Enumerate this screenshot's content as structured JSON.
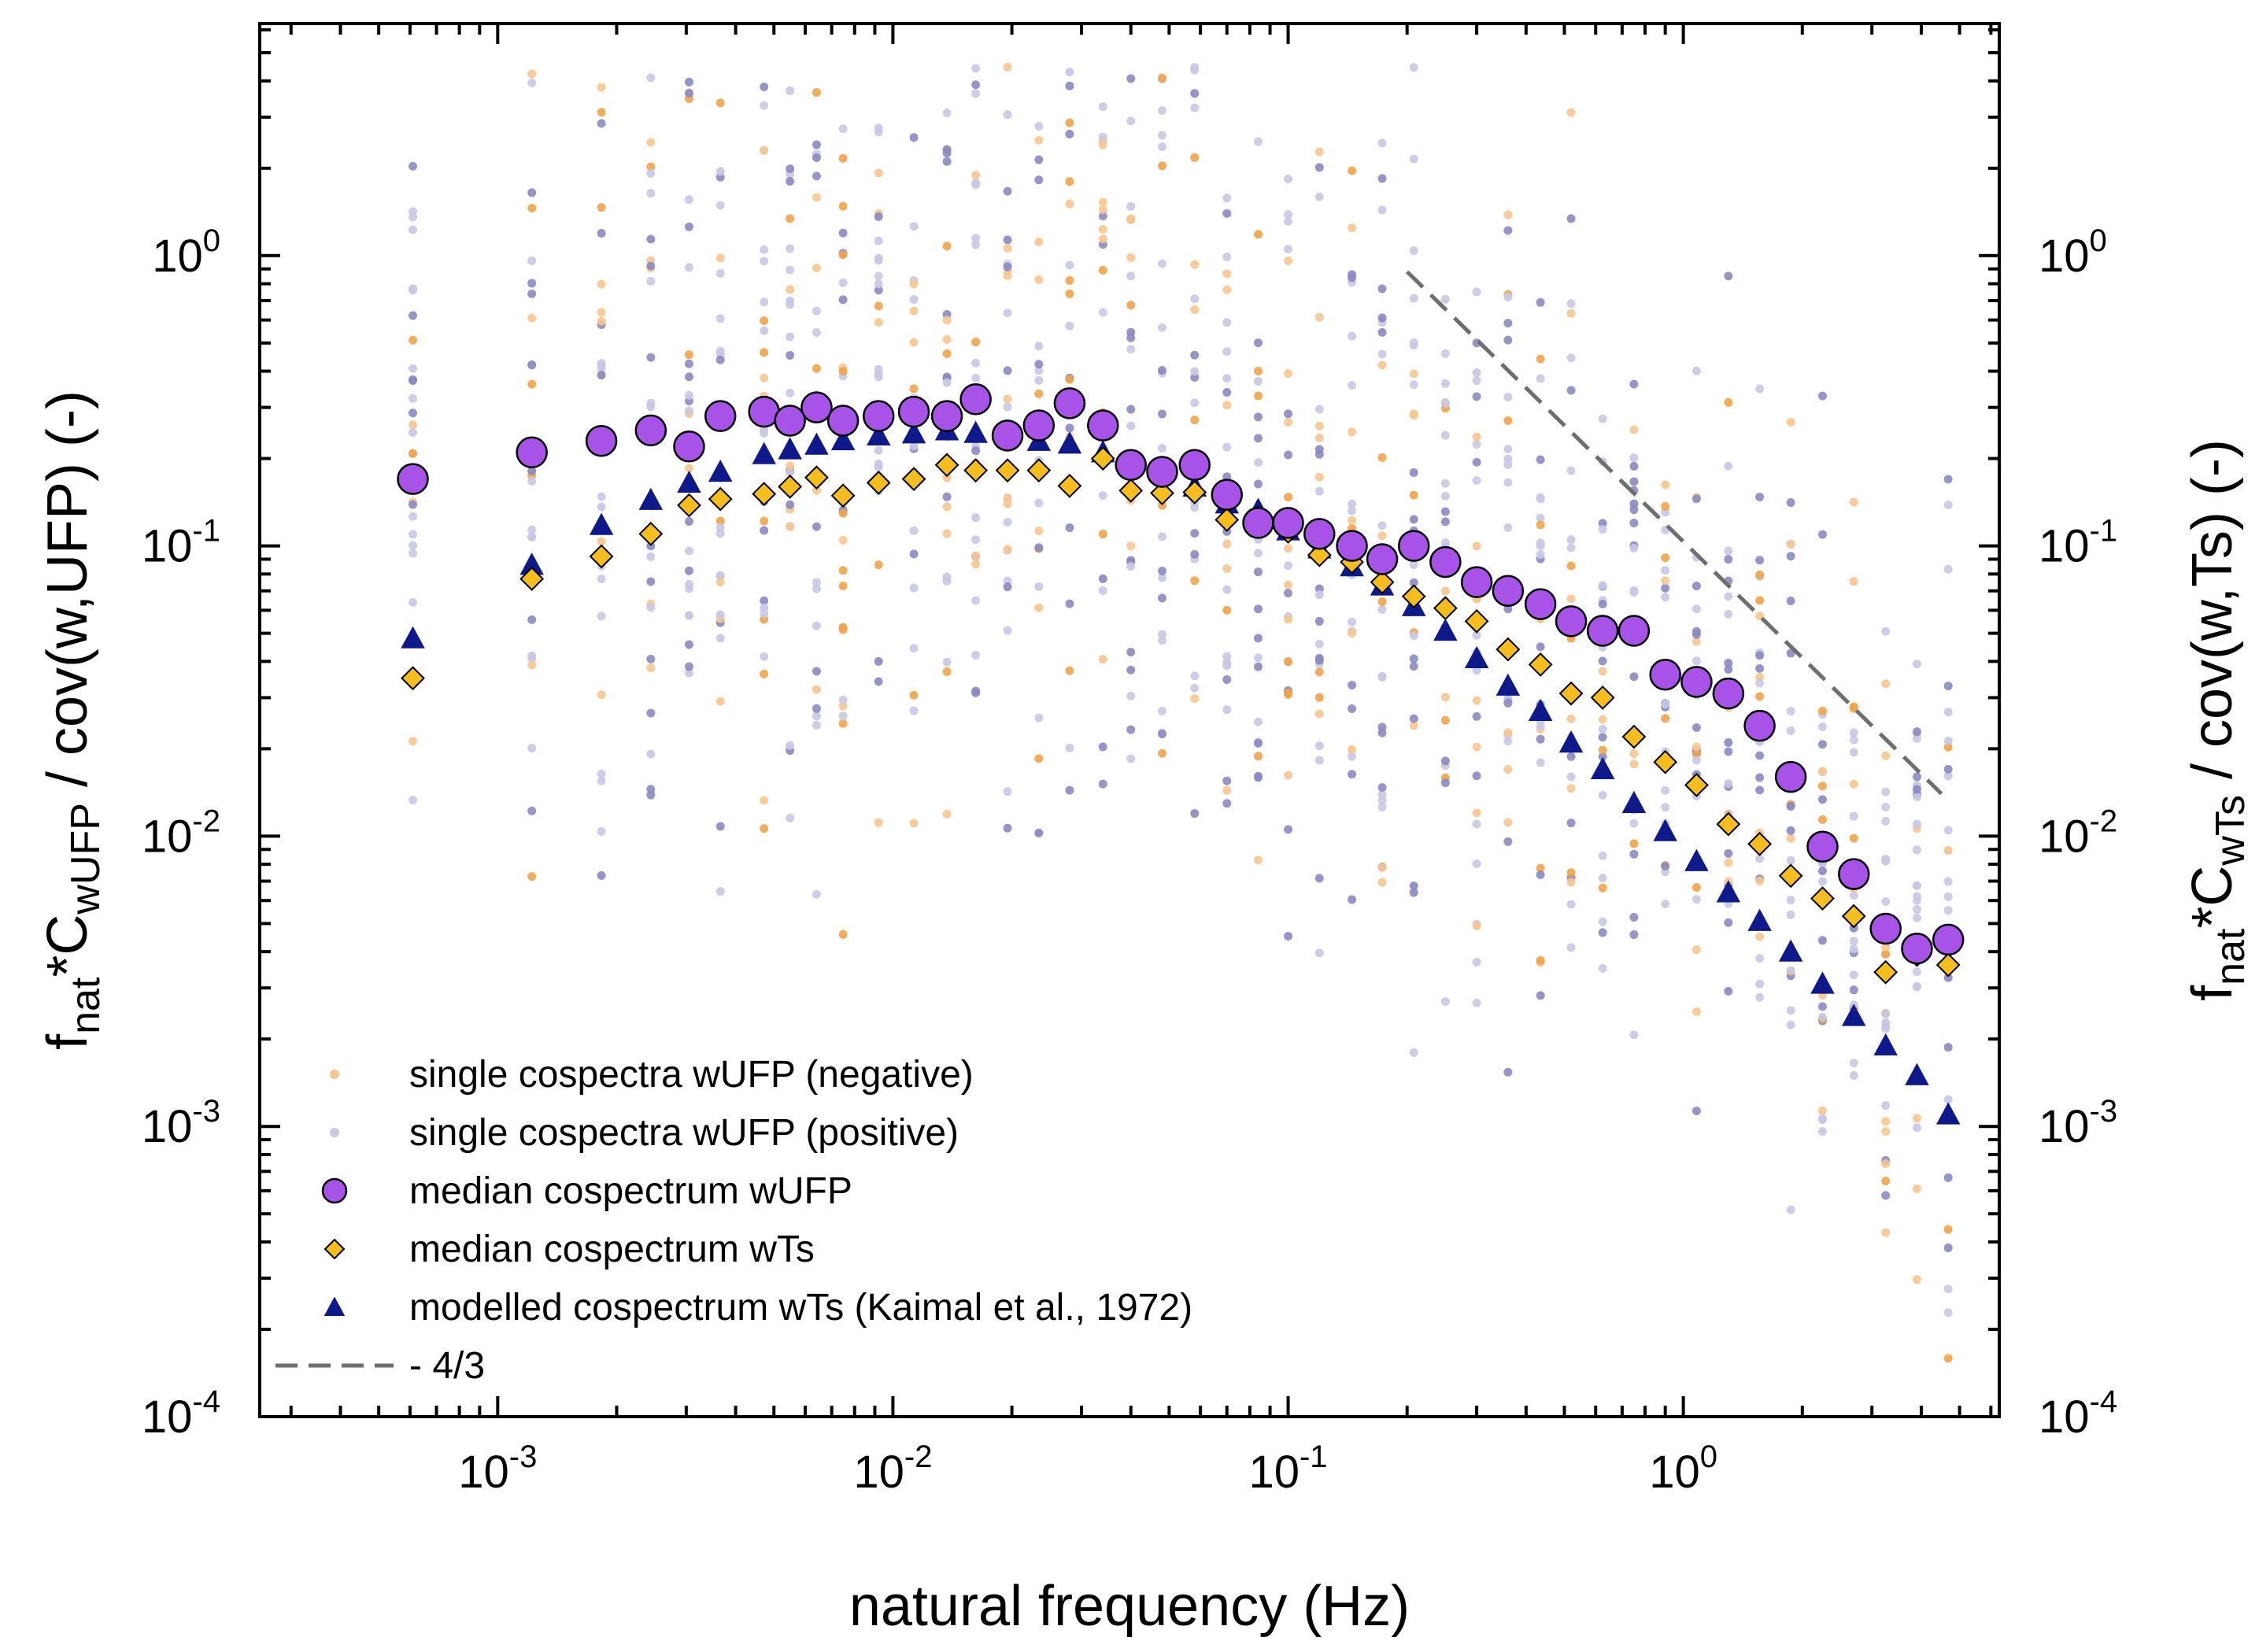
{
  "chart_data": {
    "type": "scatter",
    "title": "",
    "xlabel": "natural frequency (Hz)",
    "ylabel_left": "f_nat*C_wUFP / cov(w,UFP) (-)",
    "ylabel_left_parts": {
      "f": "f",
      "f_sub": "nat",
      "mid": "*C",
      "c_sub": "wUFP",
      "tail": " / cov(w,UFP) (-)"
    },
    "ylabel_right": "f_nat*C_wTs / cov(w,Ts) (-)",
    "ylabel_right_parts": {
      "f": "f",
      "f_sub": "nat",
      "mid": "*C",
      "c_sub": "wTs",
      "tail": " / cov(w,Ts) (-)"
    },
    "x_scale": "log",
    "y_scale": "log",
    "xlim": [
      0.00025,
      6.3
    ],
    "ylim": [
      0.0001,
      6.3
    ],
    "x_ticks": [
      {
        "value": 0.001,
        "base": "10",
        "exp": "-3"
      },
      {
        "value": 0.01,
        "base": "10",
        "exp": "-2"
      },
      {
        "value": 0.1,
        "base": "10",
        "exp": "-1"
      },
      {
        "value": 1,
        "base": "10",
        "exp": "0"
      }
    ],
    "y_ticks": [
      {
        "value": 0.0001,
        "base": "10",
        "exp": "-4"
      },
      {
        "value": 0.001,
        "base": "10",
        "exp": "-3"
      },
      {
        "value": 0.01,
        "base": "10",
        "exp": "-2"
      },
      {
        "value": 0.1,
        "base": "10",
        "exp": "-1"
      },
      {
        "value": 1,
        "base": "10",
        "exp": "0"
      }
    ],
    "x": [
      0.00061,
      0.00122,
      0.00183,
      0.00244,
      0.00305,
      0.00366,
      0.00472,
      0.00549,
      0.00641,
      0.00748,
      0.0092,
      0.0113,
      0.0137,
      0.0162,
      0.0195,
      0.0234,
      0.028,
      0.034,
      0.04,
      0.048,
      0.058,
      0.07,
      0.084,
      0.1,
      0.12,
      0.145,
      0.173,
      0.208,
      0.25,
      0.3,
      0.36,
      0.435,
      0.52,
      0.625,
      0.75,
      0.9,
      1.08,
      1.3,
      1.56,
      1.87,
      2.25,
      2.7,
      3.25,
      3.9,
      4.68
    ],
    "series": [
      {
        "name": "median cospectrum wUFP",
        "marker": "circle",
        "color": "#a853e8",
        "edgecolor": "#000000",
        "values": [
          0.17,
          0.21,
          0.23,
          0.25,
          0.22,
          0.28,
          0.29,
          0.27,
          0.3,
          0.27,
          0.28,
          0.29,
          0.28,
          0.32,
          0.24,
          0.26,
          0.31,
          0.26,
          0.19,
          0.18,
          0.19,
          0.15,
          0.12,
          0.12,
          0.11,
          0.1,
          0.09,
          0.1,
          0.088,
          0.075,
          0.07,
          0.063,
          0.055,
          0.051,
          0.051,
          0.036,
          0.034,
          0.031,
          0.024,
          0.016,
          0.0092,
          0.0074,
          0.0048,
          0.0041,
          0.0044
        ]
      },
      {
        "name": "median cospectrum wTs",
        "marker": "diamond",
        "color": "#f5bd1f",
        "edgecolor": "#000000",
        "values": [
          0.035,
          0.077,
          0.092,
          0.11,
          0.138,
          0.145,
          0.151,
          0.16,
          0.172,
          0.149,
          0.165,
          0.17,
          0.19,
          0.182,
          0.182,
          0.182,
          0.161,
          0.2,
          0.155,
          0.152,
          0.153,
          0.123,
          0.125,
          0.112,
          0.093,
          0.088,
          0.075,
          0.067,
          0.061,
          0.055,
          0.044,
          0.039,
          0.031,
          0.03,
          0.022,
          0.018,
          0.015,
          0.011,
          0.0094,
          0.0073,
          0.0061,
          0.0053,
          0.0034,
          0.0039,
          0.0036
        ]
      },
      {
        "name": "modelled cospectrum wTs (Kaimal et al., 1972)",
        "marker": "triangle",
        "color": "#0f1a8a",
        "edgecolor": "#0f1a8a",
        "values": [
          0.048,
          0.086,
          0.118,
          0.144,
          0.165,
          0.18,
          0.207,
          0.215,
          0.223,
          0.231,
          0.24,
          0.244,
          0.25,
          0.245,
          0.24,
          0.23,
          0.225,
          0.21,
          0.195,
          0.18,
          0.16,
          0.14,
          0.133,
          0.113,
          0.098,
          0.085,
          0.073,
          0.062,
          0.051,
          0.041,
          0.033,
          0.027,
          0.021,
          0.017,
          0.013,
          0.0104,
          0.0082,
          0.0064,
          0.0051,
          0.004,
          0.0031,
          0.0024,
          0.0019,
          0.0015,
          0.0011
        ]
      }
    ],
    "scatter_groups": [
      {
        "name": "single cospectra wUFP (negative)",
        "marker": "dot",
        "color": "#f7c78f",
        "alt_color": "#f0a34a"
      },
      {
        "name": "single cospectra wUFP (positive)",
        "marker": "dot",
        "color": "#c8c8e6",
        "alt_color": "#8a8ac2"
      }
    ],
    "reference_line": {
      "name": "- 4/3",
      "label": "- 4/3",
      "style": "dashed",
      "color": "#6e6e6e",
      "slope": -1.3333,
      "x_start": 0.2,
      "y_start": 0.88,
      "x_end": 4.5,
      "y_end": 0.014
    },
    "legend_position": "bottom-left",
    "legend": [
      {
        "label": "single cospectra wUFP (negative)",
        "marker": "dot",
        "color": "#f7c78f"
      },
      {
        "label": "single cospectra wUFP (positive)",
        "marker": "dot",
        "color": "#c8c8e6"
      },
      {
        "label": "median cospectrum wUFP",
        "marker": "circle",
        "color": "#a853e8"
      },
      {
        "label": "median cospectrum wTs",
        "marker": "diamond",
        "color": "#f5bd1f"
      },
      {
        "label": "modelled cospectrum wTs (Kaimal et al., 1972)",
        "marker": "triangle",
        "color": "#0f1a8a"
      },
      {
        "label": "- 4/3",
        "marker": "dashed-line",
        "color": "#6e6e6e"
      }
    ]
  }
}
